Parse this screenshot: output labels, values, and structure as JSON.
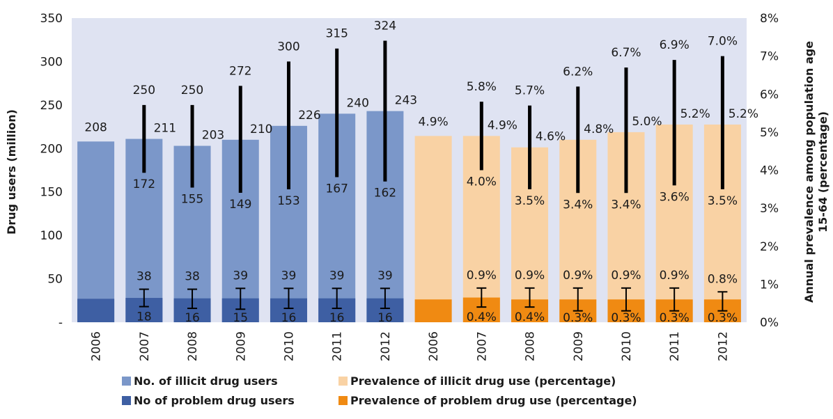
{
  "chart_data": {
    "type": "bar",
    "left_axis": {
      "label": "Drug users (million)",
      "ylim": [
        0,
        350
      ],
      "ticks": [
        "-",
        "50",
        "100",
        "150",
        "200",
        "250",
        "300",
        "350"
      ]
    },
    "right_axis": {
      "label_line1": "Annual prevalence among population age",
      "label_line2": "15-64 (percentage)",
      "ylim": [
        0,
        8
      ],
      "ticks": [
        "0%",
        "1%",
        "2%",
        "3%",
        "4%",
        "5%",
        "6%",
        "7%",
        "8%"
      ]
    },
    "years": [
      "2006",
      "2007",
      "2008",
      "2009",
      "2010",
      "2011",
      "2012"
    ],
    "series": [
      {
        "name": "No. of illicit drug users",
        "color": "#7b97c9",
        "axis": "left",
        "values": [
          208,
          211,
          203,
          210,
          226,
          240,
          243
        ],
        "labels": [
          "208",
          "211",
          "203",
          "210",
          "226",
          "240",
          "243"
        ],
        "upper": [
          null,
          250,
          250,
          272,
          300,
          315,
          324
        ],
        "upper_labels": [
          "",
          "250",
          "250",
          "272",
          "300",
          "315",
          "324"
        ],
        "lower": [
          null,
          172,
          155,
          149,
          153,
          167,
          162
        ],
        "lower_labels": [
          "",
          "172",
          "155",
          "149",
          "153",
          "167",
          "162"
        ]
      },
      {
        "name": "No of problem drug users",
        "color": "#3e5fa3",
        "axis": "left",
        "values": [
          27,
          28,
          27.5,
          27.5,
          27.5,
          27.5,
          27.5
        ],
        "upper": [
          null,
          38,
          38,
          39,
          39,
          39,
          39
        ],
        "upper_labels": [
          "",
          "38",
          "38",
          "39",
          "39",
          "39",
          "39"
        ],
        "lower": [
          null,
          18,
          16,
          15,
          16,
          16,
          16
        ],
        "lower_labels": [
          "",
          "18",
          "16",
          "15",
          "16",
          "16",
          "16"
        ]
      },
      {
        "name": "Prevalence of illicit drug use (percentage)",
        "color": "#f9d2a4",
        "axis": "right",
        "values": [
          4.9,
          4.9,
          4.6,
          4.8,
          5.0,
          5.2,
          5.2
        ],
        "labels": [
          "4.9%",
          "4.9%",
          "4.6%",
          "4.8%",
          "5.0%",
          "5.2%",
          "5.2%"
        ],
        "upper": [
          null,
          5.8,
          5.7,
          6.2,
          6.7,
          6.9,
          7.0
        ],
        "upper_labels": [
          "",
          "5.8%",
          "5.7%",
          "6.2%",
          "6.7%",
          "6.9%",
          "7.0%"
        ],
        "lower": [
          null,
          4.0,
          3.5,
          3.4,
          3.4,
          3.6,
          3.5
        ],
        "lower_labels": [
          "",
          "4.0%",
          "3.5%",
          "3.4%",
          "3.4%",
          "3.6%",
          "3.5%"
        ]
      },
      {
        "name": "Prevalence of problem drug use (percentage)",
        "color": "#f08a12",
        "axis": "right",
        "values": [
          0.6,
          0.65,
          0.6,
          0.6,
          0.6,
          0.6,
          0.6
        ],
        "upper": [
          null,
          0.9,
          0.9,
          0.9,
          0.9,
          0.9,
          0.8
        ],
        "upper_labels": [
          "",
          "0.9%",
          "0.9%",
          "0.9%",
          "0.9%",
          "0.9%",
          "0.8%"
        ],
        "lower": [
          null,
          0.4,
          0.4,
          0.3,
          0.3,
          0.3,
          0.3
        ],
        "lower_labels": [
          "",
          "0.4%",
          "0.4%",
          "0.3%",
          "0.3%",
          "0.3%",
          "0.3%"
        ]
      }
    ],
    "plot_background": "#dfe3f2",
    "errorbar_color": "#000000",
    "legend_position": "bottom"
  }
}
